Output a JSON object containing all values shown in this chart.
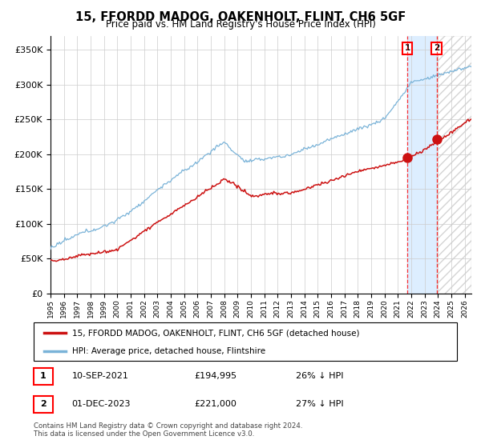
{
  "title": "15, FFORDD MADOG, OAKENHOLT, FLINT, CH6 5GF",
  "subtitle": "Price paid vs. HM Land Registry's House Price Index (HPI)",
  "ylabel_ticks": [
    "£0",
    "£50K",
    "£100K",
    "£150K",
    "£200K",
    "£250K",
    "£300K",
    "£350K"
  ],
  "ytick_values": [
    0,
    50000,
    100000,
    150000,
    200000,
    250000,
    300000,
    350000
  ],
  "ylim": [
    0,
    370000
  ],
  "xlim_start": 1995.0,
  "xlim_end": 2026.5,
  "hpi_color": "#7ab3d8",
  "price_color": "#cc1111",
  "ann1_x": 2021.7,
  "ann2_x": 2023.9,
  "transaction1_y": 194995,
  "transaction2_y": 221000,
  "legend_price_label": "15, FFORDD MADOG, OAKENHOLT, FLINT, CH6 5GF (detached house)",
  "legend_hpi_label": "HPI: Average price, detached house, Flintshire",
  "ann1_label": "1",
  "ann2_label": "2",
  "ann1_date": "10-SEP-2021",
  "ann1_price": "£194,995",
  "ann1_hpi": "26% ↓ HPI",
  "ann2_date": "01-DEC-2023",
  "ann2_price": "£221,000",
  "ann2_hpi": "27% ↓ HPI",
  "footer": "Contains HM Land Registry data © Crown copyright and database right 2024.\nThis data is licensed under the Open Government Licence v3.0.",
  "background_color": "#ffffff",
  "grid_color": "#cccccc",
  "shade_color": "#ddeeff",
  "hatch_color": "#aaaaaa"
}
